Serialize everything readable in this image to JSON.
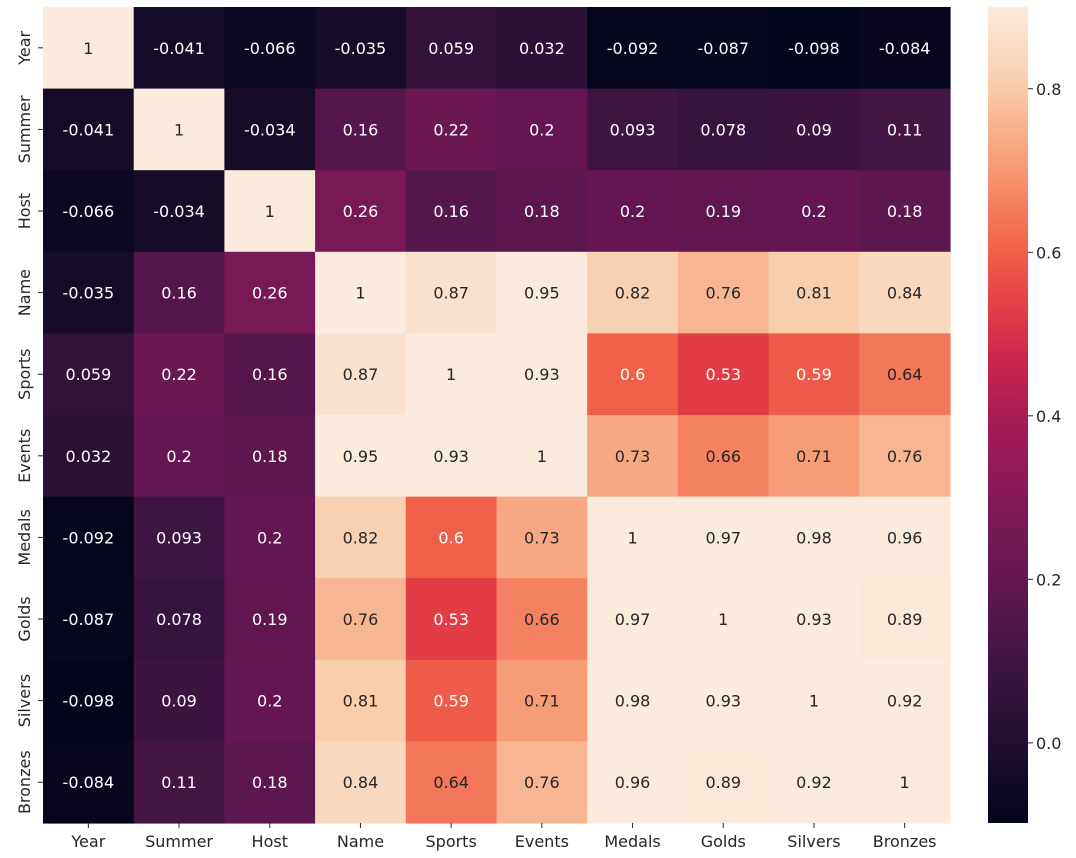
{
  "chart_data": {
    "type": "heatmap",
    "title": "",
    "xlabel": "",
    "ylabel": "",
    "colormap": "rocket",
    "vmin": -0.098,
    "vmax": 0.9,
    "categories": [
      "Year",
      "Summer",
      "Host",
      "Name",
      "Sports",
      "Events",
      "Medals",
      "Golds",
      "Silvers",
      "Bronzes"
    ],
    "rows": [
      "Year",
      "Summer",
      "Host",
      "Name",
      "Sports",
      "Events",
      "Medals",
      "Golds",
      "Silvers",
      "Bronzes"
    ],
    "values": [
      [
        1,
        -0.041,
        -0.066,
        -0.035,
        0.059,
        0.032,
        -0.092,
        -0.087,
        -0.098,
        -0.084
      ],
      [
        -0.041,
        1,
        -0.034,
        0.16,
        0.22,
        0.2,
        0.093,
        0.078,
        0.09,
        0.11
      ],
      [
        -0.066,
        -0.034,
        1,
        0.26,
        0.16,
        0.18,
        0.2,
        0.19,
        0.2,
        0.18
      ],
      [
        -0.035,
        0.16,
        0.26,
        1,
        0.87,
        0.95,
        0.82,
        0.76,
        0.81,
        0.84
      ],
      [
        0.059,
        0.22,
        0.16,
        0.87,
        1,
        0.93,
        0.6,
        0.53,
        0.59,
        0.64
      ],
      [
        0.032,
        0.2,
        0.18,
        0.95,
        0.93,
        1,
        0.73,
        0.66,
        0.71,
        0.76
      ],
      [
        -0.092,
        0.093,
        0.2,
        0.82,
        0.6,
        0.73,
        1,
        0.97,
        0.98,
        0.96
      ],
      [
        -0.087,
        0.078,
        0.19,
        0.76,
        0.53,
        0.66,
        0.97,
        1,
        0.93,
        0.89
      ],
      [
        -0.098,
        0.09,
        0.2,
        0.81,
        0.59,
        0.71,
        0.98,
        0.93,
        1,
        0.92
      ],
      [
        -0.084,
        0.11,
        0.18,
        0.84,
        0.64,
        0.76,
        0.96,
        0.89,
        0.92,
        1
      ]
    ],
    "colorbar": {
      "ticks": [
        0.0,
        0.2,
        0.4,
        0.6,
        0.8
      ],
      "tick_labels": [
        "0.0",
        "0.2",
        "0.4",
        "0.6",
        "0.8"
      ]
    }
  }
}
